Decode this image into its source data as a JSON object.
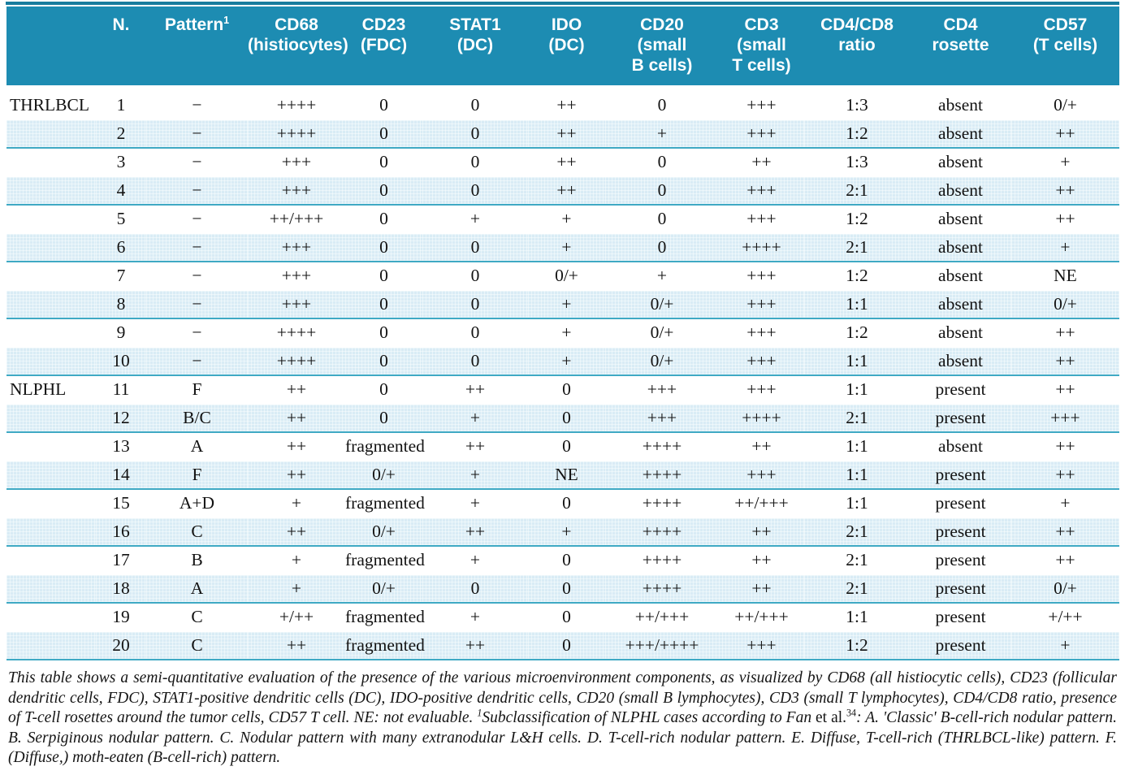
{
  "colors": {
    "header_bg": "#1d8cb2",
    "alt_row_bg": "#d9ecf5",
    "separator_line": "#3fa9c4",
    "top_rule": "#187c9e",
    "header_text": "#ffffff",
    "body_text": "#121212"
  },
  "table": {
    "field_order": [
      "group",
      "n",
      "pattern",
      "cd68",
      "cd23",
      "stat1",
      "ido",
      "cd20",
      "cd3",
      "ratio",
      "rosette",
      "cd57"
    ],
    "columns": [
      {
        "id": "group",
        "lines": [
          ""
        ]
      },
      {
        "id": "n",
        "lines": [
          "N."
        ]
      },
      {
        "id": "pattern",
        "lines": [
          "Pattern"
        ],
        "sup": "1"
      },
      {
        "id": "cd68",
        "lines": [
          "CD68",
          "(histiocytes)"
        ]
      },
      {
        "id": "cd23",
        "lines": [
          "CD23",
          "(FDC)"
        ]
      },
      {
        "id": "stat1",
        "lines": [
          "STAT1",
          "(DC)"
        ]
      },
      {
        "id": "ido",
        "lines": [
          "IDO",
          "(DC)"
        ]
      },
      {
        "id": "cd20",
        "lines": [
          "CD20",
          "(small",
          "B cells)"
        ]
      },
      {
        "id": "cd3",
        "lines": [
          "CD3",
          "(small",
          "T cells)"
        ]
      },
      {
        "id": "ratio",
        "lines": [
          "CD4/CD8",
          "ratio"
        ]
      },
      {
        "id": "rosette",
        "lines": [
          "CD4",
          "rosette"
        ]
      },
      {
        "id": "cd57",
        "lines": [
          "CD57",
          "(T cells)"
        ]
      }
    ],
    "rows": [
      {
        "group": "THRLBCL",
        "n": "1",
        "pattern": "−",
        "cd68": "++++",
        "cd23": "0",
        "stat1": "0",
        "ido": "++",
        "cd20": "0",
        "cd3": "+++",
        "ratio": "1:3",
        "rosette": "absent",
        "cd57": "0/+"
      },
      {
        "group": "",
        "n": "2",
        "pattern": "−",
        "cd68": "++++",
        "cd23": "0",
        "stat1": "0",
        "ido": "++",
        "cd20": "+",
        "cd3": "+++",
        "ratio": "1:2",
        "rosette": "absent",
        "cd57": "++"
      },
      {
        "group": "",
        "n": "3",
        "pattern": "−",
        "cd68": "+++",
        "cd23": "0",
        "stat1": "0",
        "ido": "++",
        "cd20": "0",
        "cd3": "++",
        "ratio": "1:3",
        "rosette": "absent",
        "cd57": "+"
      },
      {
        "group": "",
        "n": "4",
        "pattern": "−",
        "cd68": "+++",
        "cd23": "0",
        "stat1": "0",
        "ido": "++",
        "cd20": "0",
        "cd3": "+++",
        "ratio": "2:1",
        "rosette": "absent",
        "cd57": "++"
      },
      {
        "group": "",
        "n": "5",
        "pattern": "−",
        "cd68": "++/+++",
        "cd23": "0",
        "stat1": "+",
        "ido": "+",
        "cd20": "0",
        "cd3": "+++",
        "ratio": "1:2",
        "rosette": "absent",
        "cd57": "++"
      },
      {
        "group": "",
        "n": "6",
        "pattern": "−",
        "cd68": "+++",
        "cd23": "0",
        "stat1": "0",
        "ido": "+",
        "cd20": "0",
        "cd3": "++++",
        "ratio": "2:1",
        "rosette": "absent",
        "cd57": "+"
      },
      {
        "group": "",
        "n": "7",
        "pattern": "−",
        "cd68": "+++",
        "cd23": "0",
        "stat1": "0",
        "ido": "0/+",
        "cd20": "+",
        "cd3": "+++",
        "ratio": "1:2",
        "rosette": "absent",
        "cd57": "NE"
      },
      {
        "group": "",
        "n": "8",
        "pattern": "−",
        "cd68": "+++",
        "cd23": "0",
        "stat1": "0",
        "ido": "+",
        "cd20": "0/+",
        "cd3": "+++",
        "ratio": "1:1",
        "rosette": "absent",
        "cd57": "0/+"
      },
      {
        "group": "",
        "n": "9",
        "pattern": "−",
        "cd68": "++++",
        "cd23": "0",
        "stat1": "0",
        "ido": "+",
        "cd20": "0/+",
        "cd3": "+++",
        "ratio": "1:2",
        "rosette": "absent",
        "cd57": "++"
      },
      {
        "group": "",
        "n": "10",
        "pattern": "−",
        "cd68": "++++",
        "cd23": "0",
        "stat1": "0",
        "ido": "+",
        "cd20": "0/+",
        "cd3": "+++",
        "ratio": "1:1",
        "rosette": "absent",
        "cd57": "++"
      },
      {
        "group": "NLPHL",
        "n": "11",
        "pattern": "F",
        "cd68": "++",
        "cd23": "0",
        "stat1": "++",
        "ido": "0",
        "cd20": "+++",
        "cd3": "+++",
        "ratio": "1:1",
        "rosette": "present",
        "cd57": "++"
      },
      {
        "group": "",
        "n": "12",
        "pattern": "B/C",
        "cd68": "++",
        "cd23": "0",
        "stat1": "+",
        "ido": "0",
        "cd20": "+++",
        "cd3": "++++",
        "ratio": "2:1",
        "rosette": "present",
        "cd57": "+++"
      },
      {
        "group": "",
        "n": "13",
        "pattern": "A",
        "cd68": "++",
        "cd23": "fragmented",
        "stat1": "++",
        "ido": "0",
        "cd20": "++++",
        "cd3": "++",
        "ratio": "1:1",
        "rosette": "absent",
        "cd57": "++"
      },
      {
        "group": "",
        "n": "14",
        "pattern": "F",
        "cd68": "++",
        "cd23": "0/+",
        "stat1": "+",
        "ido": "NE",
        "cd20": "++++",
        "cd3": "+++",
        "ratio": "1:1",
        "rosette": "present",
        "cd57": "++"
      },
      {
        "group": "",
        "n": "15",
        "pattern": "A+D",
        "cd68": "+",
        "cd23": "fragmented",
        "stat1": "+",
        "ido": "0",
        "cd20": "++++",
        "cd3": "++/+++",
        "ratio": "1:1",
        "rosette": "present",
        "cd57": "+"
      },
      {
        "group": "",
        "n": "16",
        "pattern": "C",
        "cd68": "++",
        "cd23": "0/+",
        "stat1": "++",
        "ido": "+",
        "cd20": "++++",
        "cd3": "++",
        "ratio": "2:1",
        "rosette": "present",
        "cd57": "++"
      },
      {
        "group": "",
        "n": "17",
        "pattern": "B",
        "cd68": "+",
        "cd23": "fragmented",
        "stat1": "+",
        "ido": "0",
        "cd20": "++++",
        "cd3": "++",
        "ratio": "2:1",
        "rosette": "present",
        "cd57": "++"
      },
      {
        "group": "",
        "n": "18",
        "pattern": "A",
        "cd68": "+",
        "cd23": "0/+",
        "stat1": "0",
        "ido": "0",
        "cd20": "++++",
        "cd3": "++",
        "ratio": "2:1",
        "rosette": "present",
        "cd57": "0/+"
      },
      {
        "group": "",
        "n": "19",
        "pattern": "C",
        "cd68": "+/++",
        "cd23": "fragmented",
        "stat1": "+",
        "ido": "0",
        "cd20": "++/+++",
        "cd3": "++/+++",
        "ratio": "1:1",
        "rosette": "present",
        "cd57": "+/++"
      },
      {
        "group": "",
        "n": "20",
        "pattern": "C",
        "cd68": "++",
        "cd23": "fragmented",
        "stat1": "++",
        "ido": "0",
        "cd20": "+++/++++",
        "cd3": "+++",
        "ratio": "1:2",
        "rosette": "present",
        "cd57": "+"
      }
    ]
  },
  "footnote": {
    "segments": [
      {
        "text": "This table shows a semi-quantitative evaluation of the presence of the various microenvironment components, as visualized by CD68 (all histiocytic cells), CD23 (follicular dendritic cells, FDC), STAT1-positive dendritic cells (DC), IDO-positive dendritic cells, CD20 (small B lymphocytes), CD3 (small T lymphocytes), CD4/CD8 ratio, presence of T-cell rosettes around the tumor cells, CD57 T cell. NE: not evaluable. ",
        "style": "italic",
        "sup": false
      },
      {
        "text": "1",
        "style": "italic",
        "sup": true
      },
      {
        "text": "Subclassification of NLPHL cases according to Fan ",
        "style": "italic",
        "sup": false
      },
      {
        "text": "et al.",
        "style": "roman",
        "sup": false
      },
      {
        "text": "34",
        "style": "roman",
        "sup": true
      },
      {
        "text": ": A. 'Classic' B-cell-rich nodular pattern. B. Serpiginous nodular pattern. C. Nodular pattern with many extranodular L&H cells. D. T-cell-rich nodular pattern. E. Diffuse, T-cell-rich (THRLBCL-like) pattern. F. (Diffuse,) moth-eaten (B-cell-rich) pattern.",
        "style": "italic",
        "sup": false
      }
    ]
  }
}
